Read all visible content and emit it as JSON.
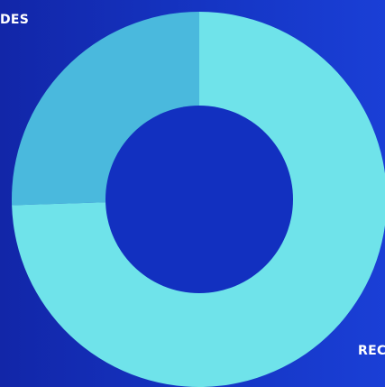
{
  "chart_data": {
    "type": "pie",
    "donut": true,
    "labels": [
      "DES",
      "REC"
    ],
    "values": [
      25.5,
      74.5
    ],
    "colors": [
      "#4ab9dd",
      "#6fe3ea"
    ],
    "title": "",
    "legend": "none"
  },
  "theme": {
    "background_left": "#1226a8",
    "background_right": "#1a3fd6",
    "hole": "#1230c0",
    "label_color": "#ffffff"
  }
}
